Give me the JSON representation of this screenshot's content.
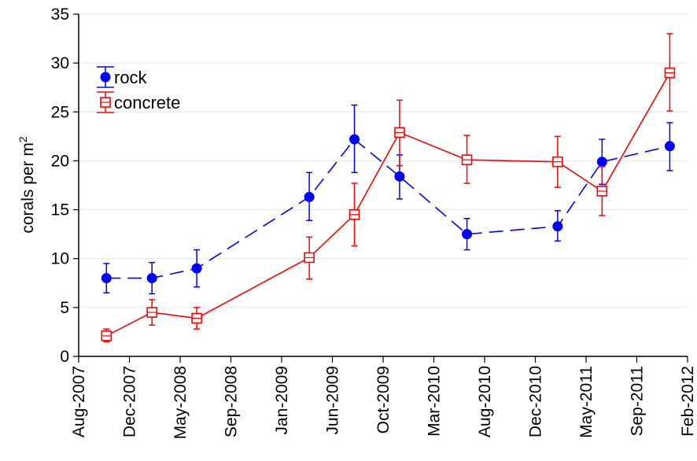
{
  "chart_data": {
    "type": "line",
    "ylabel": {
      "text": "corals per m",
      "superscript": "2"
    },
    "ylim": [
      0,
      35
    ],
    "yticks": [
      0,
      5,
      10,
      15,
      20,
      25,
      30,
      35
    ],
    "grid": "horizontal",
    "legend_position": "top-left",
    "x_ticks": [
      "Aug-2007",
      "Dec-2007",
      "May-2008",
      "Sep-2008",
      "Jan-2009",
      "Jun-2009",
      "Oct-2009",
      "Mar-2010",
      "Aug-2010",
      "Dec-2010",
      "May-2011",
      "Sep-2011",
      "Feb-2012"
    ],
    "xlim": [
      "2007-08-01",
      "2012-02-01"
    ],
    "series": [
      {
        "name": "rock",
        "color": "#0000ff",
        "marker": "filled-circle",
        "line": "dashed",
        "points": [
          {
            "x": "2007-10-15",
            "y": 8.0,
            "err_low": 6.5,
            "err_high": 9.5
          },
          {
            "x": "2008-02-15",
            "y": 8.0,
            "err_low": 6.4,
            "err_high": 9.6
          },
          {
            "x": "2008-06-15",
            "y": 9.0,
            "err_low": 7.1,
            "err_high": 10.9
          },
          {
            "x": "2009-04-15",
            "y": 16.3,
            "err_low": 13.9,
            "err_high": 18.8
          },
          {
            "x": "2009-08-15",
            "y": 22.2,
            "err_low": 18.8,
            "err_high": 25.7
          },
          {
            "x": "2009-12-15",
            "y": 18.4,
            "err_low": 16.1,
            "err_high": 20.6
          },
          {
            "x": "2010-06-15",
            "y": 12.5,
            "err_low": 10.9,
            "err_high": 14.1
          },
          {
            "x": "2011-02-15",
            "y": 13.3,
            "err_low": 11.8,
            "err_high": 14.9
          },
          {
            "x": "2011-06-15",
            "y": 19.9,
            "err_low": 17.6,
            "err_high": 22.2
          },
          {
            "x": "2011-12-15",
            "y": 21.5,
            "err_low": 19.0,
            "err_high": 23.9
          }
        ]
      },
      {
        "name": "concrete",
        "color": "#ff0000",
        "marker": "open-square",
        "line": "solid",
        "points": [
          {
            "x": "2007-10-15",
            "y": 2.1,
            "err_low": 1.5,
            "err_high": 2.8
          },
          {
            "x": "2008-02-15",
            "y": 4.5,
            "err_low": 3.2,
            "err_high": 5.8
          },
          {
            "x": "2008-06-15",
            "y": 3.9,
            "err_low": 2.8,
            "err_high": 5.0
          },
          {
            "x": "2009-04-15",
            "y": 10.1,
            "err_low": 7.9,
            "err_high": 12.2
          },
          {
            "x": "2009-08-15",
            "y": 14.5,
            "err_low": 11.3,
            "err_high": 17.7
          },
          {
            "x": "2009-12-15",
            "y": 22.9,
            "err_low": 19.5,
            "err_high": 26.2
          },
          {
            "x": "2010-06-15",
            "y": 20.1,
            "err_low": 17.7,
            "err_high": 22.6
          },
          {
            "x": "2011-02-15",
            "y": 19.9,
            "err_low": 17.3,
            "err_high": 22.5
          },
          {
            "x": "2011-06-15",
            "y": 16.9,
            "err_low": 14.4,
            "err_high": 19.4
          },
          {
            "x": "2011-12-15",
            "y": 29.0,
            "err_low": 25.1,
            "err_high": 33.0
          }
        ]
      }
    ]
  }
}
